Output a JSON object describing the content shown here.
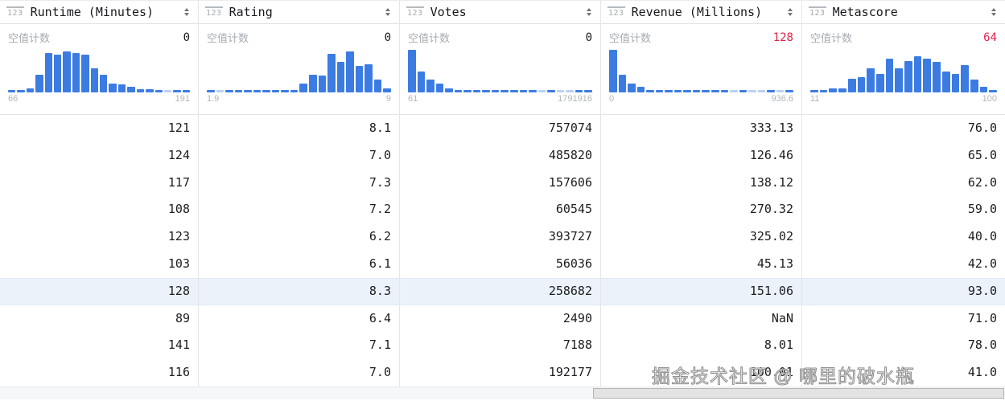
{
  "columns": [
    {
      "label": "Runtime (Minutes)",
      "type_icon": "123",
      "null_count_label": "空值计数",
      "null_count": "0",
      "null_count_alert": false,
      "histogram": {
        "min": "66",
        "max": "191",
        "bars": [
          0.06,
          0.06,
          0.1,
          0.42,
          0.92,
          0.88,
          0.97,
          0.93,
          0.88,
          0.57,
          0.42,
          0.2,
          0.18,
          0.13,
          0.08,
          0.08,
          0.06,
          0.03,
          0.06,
          0.06
        ]
      }
    },
    {
      "label": "Rating",
      "type_icon": "123",
      "null_count_label": "空值计数",
      "null_count": "0",
      "null_count_alert": false,
      "histogram": {
        "min": "1.9",
        "max": "9",
        "bars": [
          0.06,
          0.03,
          0.06,
          0.06,
          0.06,
          0.06,
          0.06,
          0.06,
          0.06,
          0.06,
          0.2,
          0.42,
          0.4,
          0.9,
          0.72,
          0.97,
          0.62,
          0.66,
          0.3,
          0.1
        ]
      }
    },
    {
      "label": "Votes",
      "type_icon": "123",
      "null_count_label": "空值计数",
      "null_count": "0",
      "null_count_alert": false,
      "histogram": {
        "min": "61",
        "max": "1791916",
        "bars": [
          1.0,
          0.5,
          0.3,
          0.2,
          0.09,
          0.06,
          0.06,
          0.06,
          0.06,
          0.06,
          0.06,
          0.06,
          0.06,
          0.06,
          0.03,
          0.06,
          0.03,
          0.03,
          0.06,
          0.05
        ]
      }
    },
    {
      "label": "Revenue (Millions)",
      "type_icon": "123",
      "null_count_label": "空值计数",
      "null_count": "128",
      "null_count_alert": true,
      "histogram": {
        "min": "0",
        "max": "936.6",
        "bars": [
          1.0,
          0.42,
          0.2,
          0.13,
          0.06,
          0.06,
          0.06,
          0.06,
          0.06,
          0.06,
          0.06,
          0.06,
          0.06,
          0.03,
          0.06,
          0.03,
          0.03,
          0.06,
          0.03,
          0.05
        ]
      }
    },
    {
      "label": "Metascore",
      "type_icon": "123",
      "null_count_label": "空值计数",
      "null_count": "64",
      "null_count_alert": true,
      "histogram": {
        "min": "11",
        "max": "100",
        "bars": [
          0.04,
          0.04,
          0.09,
          0.09,
          0.32,
          0.36,
          0.56,
          0.44,
          0.8,
          0.56,
          0.74,
          0.84,
          0.8,
          0.72,
          0.5,
          0.44,
          0.64,
          0.3,
          0.13,
          0.05
        ]
      }
    }
  ],
  "table": {
    "highlighted_row_index": 6,
    "rows": [
      [
        "121",
        "8.1",
        "757074",
        "333.13",
        "76.0"
      ],
      [
        "124",
        "7.0",
        "485820",
        "126.46",
        "65.0"
      ],
      [
        "117",
        "7.3",
        "157606",
        "138.12",
        "62.0"
      ],
      [
        "108",
        "7.2",
        "60545",
        "270.32",
        "59.0"
      ],
      [
        "123",
        "6.2",
        "393727",
        "325.02",
        "40.0"
      ],
      [
        "103",
        "6.1",
        "56036",
        "45.13",
        "42.0"
      ],
      [
        "128",
        "8.3",
        "258682",
        "151.06",
        "93.0"
      ],
      [
        "89",
        "6.4",
        "2490",
        "NaN",
        "71.0"
      ],
      [
        "141",
        "7.1",
        "7188",
        "8.01",
        "78.0"
      ],
      [
        "116",
        "7.0",
        "192177",
        "100.01",
        "41.0"
      ]
    ]
  },
  "colors": {
    "histogram_bar": "#3c7ce2",
    "alert_red": "#e0234a",
    "row_highlight": "#ebf2fa"
  },
  "watermark": "掘金技术社区 @ 哪里的破水瓶"
}
